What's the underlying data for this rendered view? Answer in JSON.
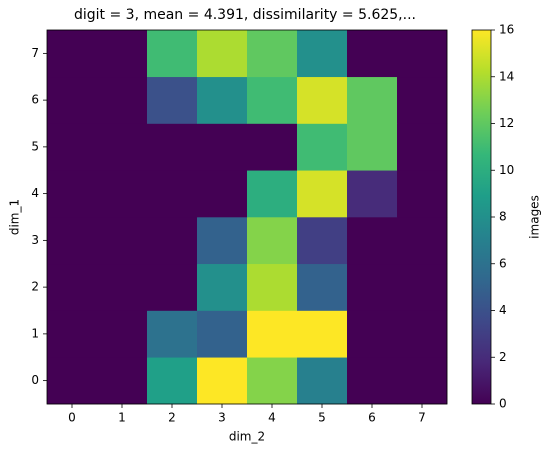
{
  "chart_data": {
    "type": "heatmap",
    "title": "digit = 3, mean = 4.391, dissimilarity = 5.625,...",
    "xlabel": "dim_2",
    "ylabel": "dim_1",
    "x": [
      0,
      1,
      2,
      3,
      4,
      5,
      6,
      7
    ],
    "y": [
      0,
      1,
      2,
      3,
      4,
      5,
      6,
      7
    ],
    "values": [
      [
        0,
        0,
        9,
        16,
        13,
        7,
        0,
        0
      ],
      [
        0,
        0,
        6,
        5,
        16,
        16,
        0,
        0
      ],
      [
        0,
        0,
        0,
        8,
        14,
        5,
        0,
        0
      ],
      [
        0,
        0,
        0,
        5,
        13,
        3,
        0,
        0
      ],
      [
        0,
        0,
        0,
        0,
        10,
        15,
        2,
        0
      ],
      [
        0,
        0,
        0,
        0,
        0,
        11,
        12,
        0
      ],
      [
        0,
        0,
        4,
        8,
        11,
        15,
        12,
        0
      ],
      [
        0,
        0,
        11,
        14,
        12,
        8,
        0,
        0
      ]
    ],
    "xlim": [
      -0.5,
      7.5
    ],
    "ylim": [
      -0.5,
      7.5
    ],
    "xticks": [
      0,
      1,
      2,
      3,
      4,
      5,
      6,
      7
    ],
    "yticks": [
      0,
      1,
      2,
      3,
      4,
      5,
      6,
      7
    ],
    "colormap": "viridis",
    "colorbar": {
      "label": "images",
      "lim": [
        0,
        16
      ],
      "ticks": [
        0,
        2,
        4,
        6,
        8,
        10,
        12,
        14,
        16
      ]
    }
  }
}
